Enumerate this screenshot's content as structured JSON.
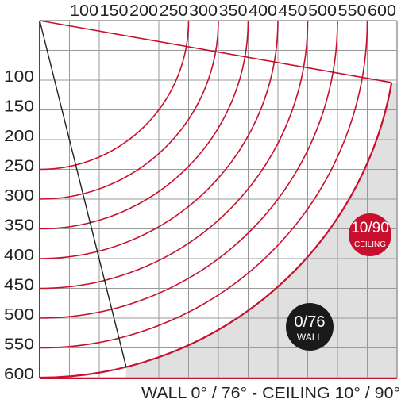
{
  "top_labels": [
    "100",
    "150",
    "200",
    "250",
    "300",
    "350",
    "400",
    "450",
    "500",
    "550",
    "600"
  ],
  "left_labels": [
    "100",
    "150",
    "200",
    "250",
    "300",
    "350",
    "400",
    "450",
    "500",
    "550",
    "600"
  ],
  "caption": "WALL 0° / 76° - CEILING 10° / 90°",
  "ceiling_badge": {
    "value": "10/90",
    "label": "CEILING"
  },
  "wall_badge": {
    "value": "0/76",
    "label": "WALL"
  }
}
